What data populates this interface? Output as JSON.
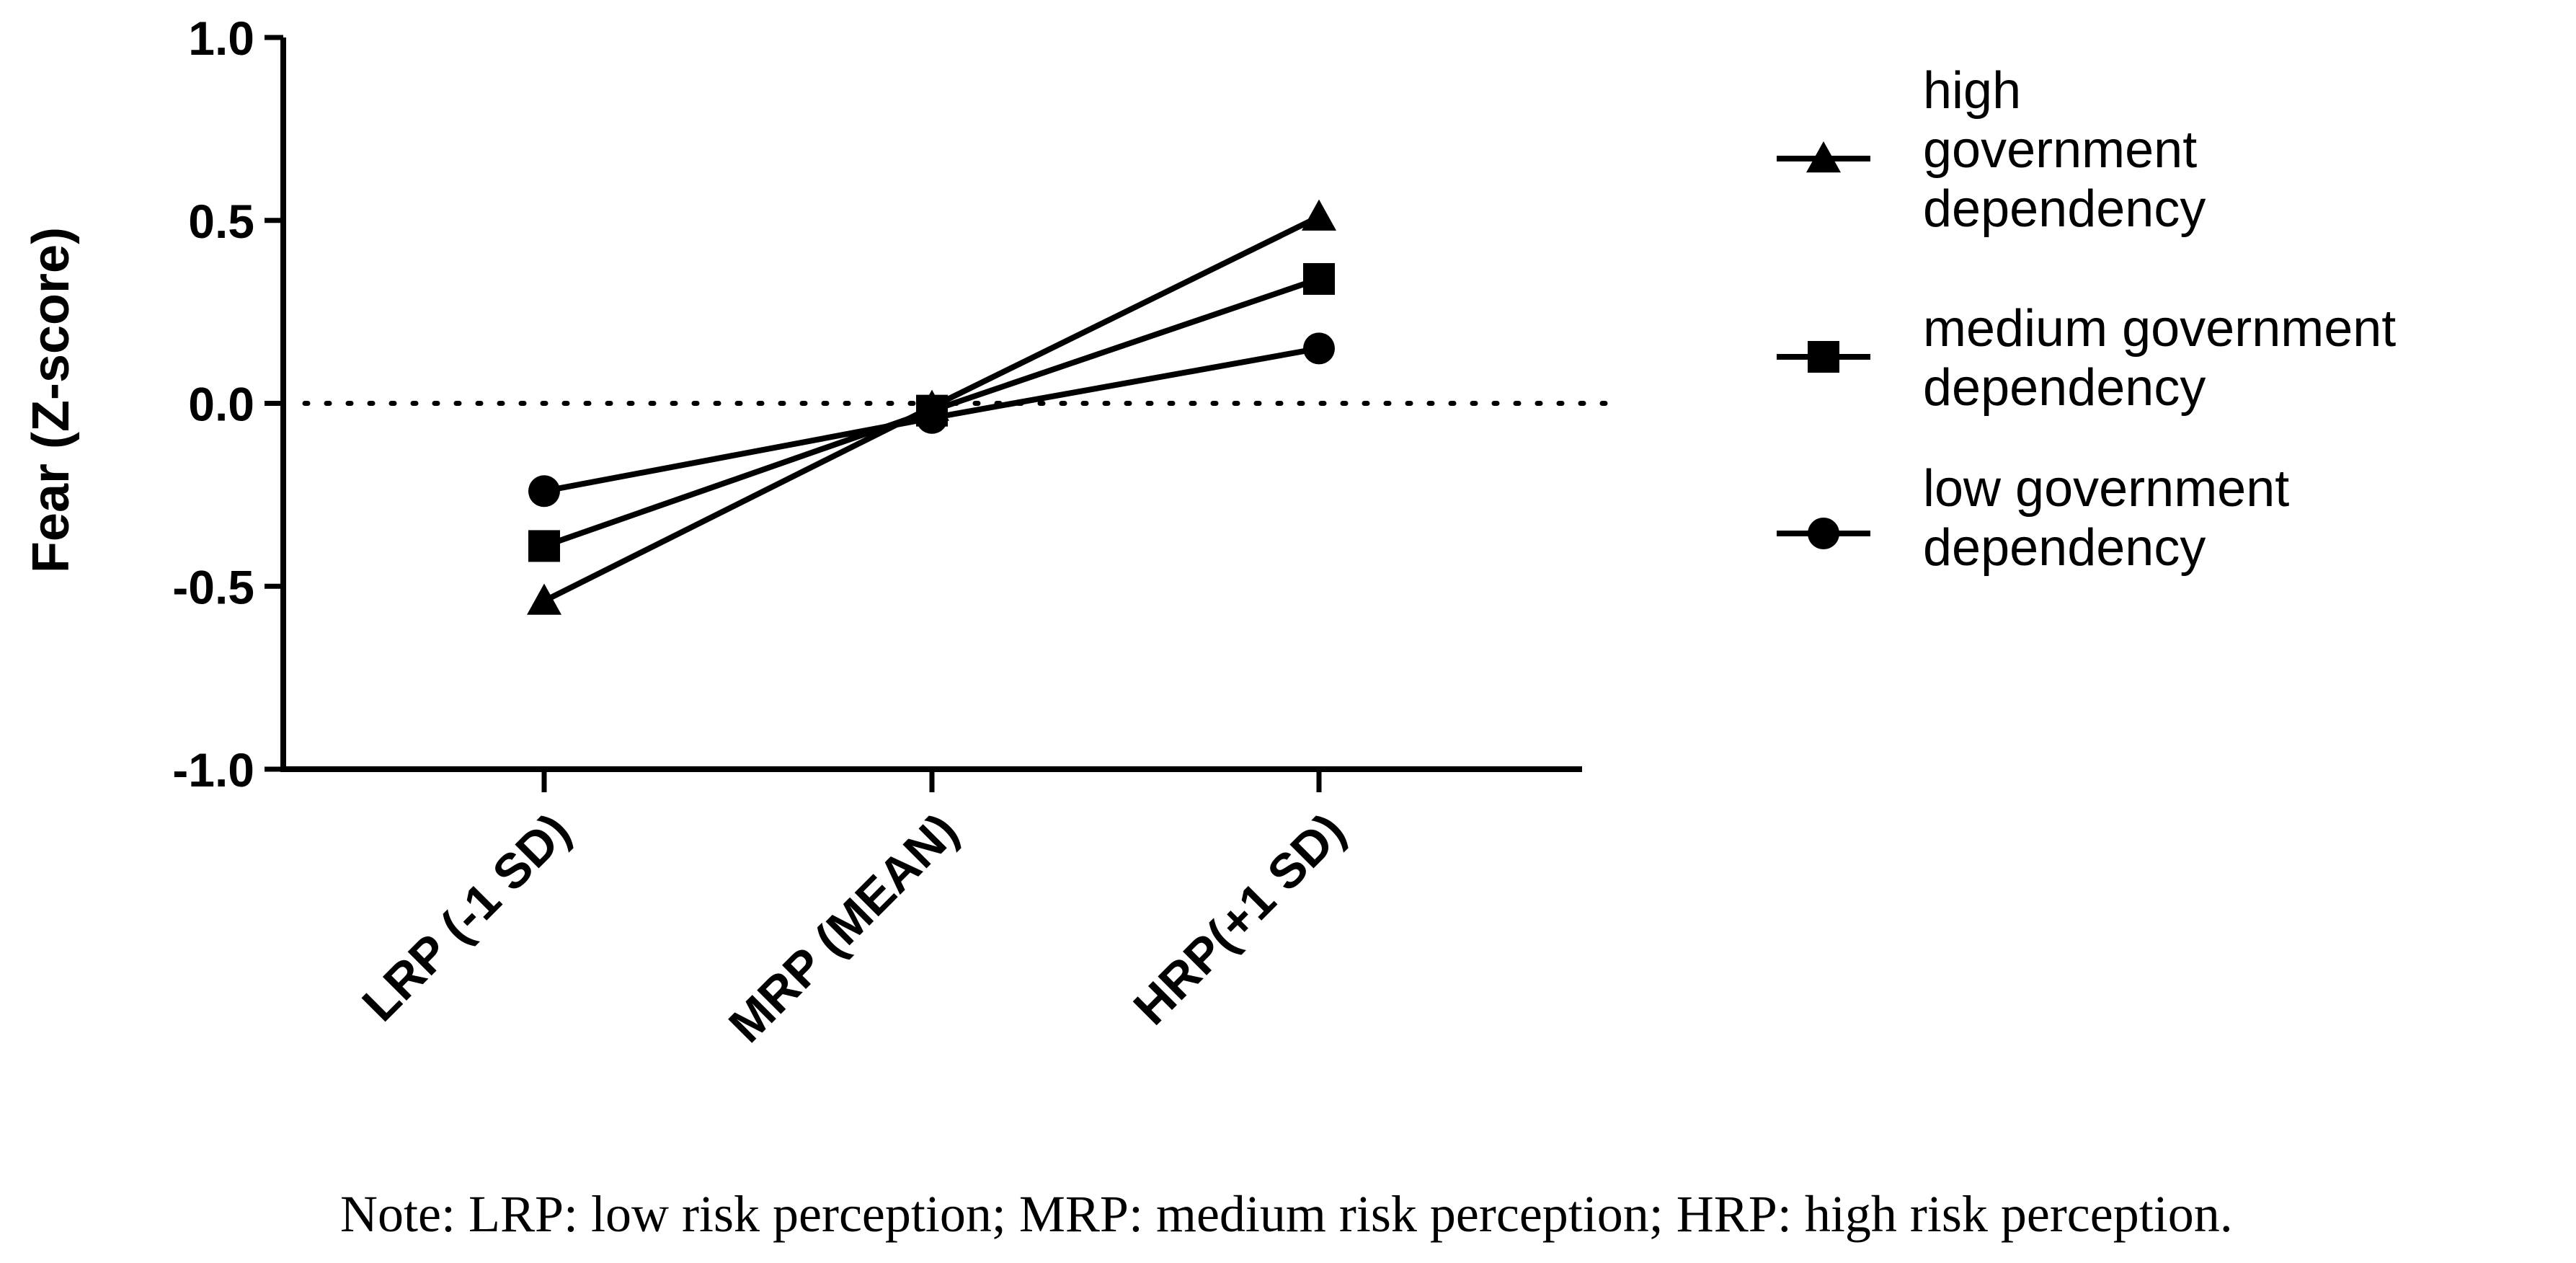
{
  "chart_data": {
    "type": "line",
    "title": "",
    "xlabel": "",
    "ylabel": "Fear (Z-score)",
    "categories": [
      "LRP (-1 SD)",
      "MRP (MEAN)",
      "HRP(+1 SD)"
    ],
    "ylim": [
      -1.0,
      1.0
    ],
    "yticks": [
      1.0,
      0.5,
      0.0,
      -0.5,
      -1.0
    ],
    "ytick_labels": [
      "1.0",
      "0.5",
      "0.0",
      "-0.5",
      "-1.0"
    ],
    "reference_line": {
      "y": 0.0,
      "style": "dotted"
    },
    "legend_position": "right",
    "series": [
      {
        "name": "high government dependency",
        "legend_lines": [
          "high",
          "government",
          "dependency"
        ],
        "marker": "triangle",
        "values": [
          -0.54,
          -0.01,
          0.51
        ]
      },
      {
        "name": "medium government dependency",
        "legend_lines": [
          "medium government",
          "dependency"
        ],
        "marker": "square",
        "values": [
          -0.39,
          -0.02,
          0.34
        ]
      },
      {
        "name": "low government dependency",
        "legend_lines": [
          "low government",
          "dependency"
        ],
        "marker": "circle",
        "values": [
          -0.24,
          -0.04,
          0.15
        ]
      }
    ],
    "note": "Note: LRP: low risk perception; MRP: medium risk perception; HRP: high risk perception."
  },
  "colors": {
    "line": "#000000",
    "background": "#ffffff"
  }
}
